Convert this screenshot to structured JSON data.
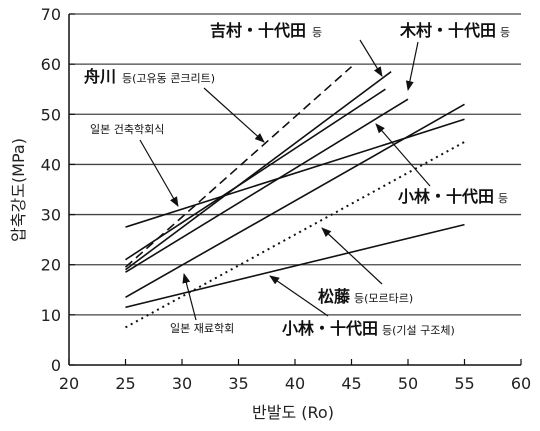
{
  "chart_data": {
    "type": "line",
    "title": "",
    "xlabel": "반발도 (Ro)",
    "ylabel": "압축강도(MPa)",
    "xlim": [
      20,
      60
    ],
    "ylim": [
      0,
      70
    ],
    "xticks": [
      20,
      25,
      30,
      35,
      40,
      45,
      50,
      55,
      60
    ],
    "yticks": [
      0,
      10,
      20,
      30,
      40,
      50,
      60,
      70
    ],
    "grid": "horizontal",
    "series": [
      {
        "style": "dashed",
        "x": [
          25,
          45
        ],
        "y": [
          19.5,
          59.5
        ]
      },
      {
        "style": "solid",
        "x": [
          25,
          48.5
        ],
        "y": [
          19,
          58.5
        ]
      },
      {
        "style": "solid",
        "x": [
          25,
          48
        ],
        "y": [
          21,
          55
        ]
      },
      {
        "style": "solid",
        "x": [
          25,
          50
        ],
        "y": [
          18.5,
          53
        ]
      },
      {
        "style": "solid",
        "x": [
          25,
          55
        ],
        "y": [
          13.5,
          52
        ]
      },
      {
        "style": "solid",
        "x": [
          25,
          55
        ],
        "y": [
          27.5,
          49
        ]
      },
      {
        "style": "solid",
        "x": [
          25,
          55
        ],
        "y": [
          11.5,
          28
        ]
      },
      {
        "style": "dotted",
        "x": [
          25,
          55
        ],
        "y": [
          7.5,
          44.5
        ]
      }
    ],
    "annotations": [
      {
        "id": "yoshimura",
        "cjk": "吉村・十代田",
        "suffix": "등"
      },
      {
        "id": "kimura",
        "cjk": "木村・十代田",
        "suffix": "등"
      },
      {
        "id": "funakawa",
        "cjk": "舟川",
        "suffix": "등(고유동 콘크리트)"
      },
      {
        "id": "aij",
        "cjk": "",
        "suffix": "일본 건축학회식"
      },
      {
        "id": "kobayashi1",
        "cjk": "小林・十代田",
        "suffix": "등"
      },
      {
        "id": "matsufuji",
        "cjk": "松藤",
        "suffix": "등(모르타르)"
      },
      {
        "id": "jsms",
        "cjk": "",
        "suffix": "일본 재료학회"
      },
      {
        "id": "kobayashi2",
        "cjk": "小林・十代田",
        "suffix": "등(기설 구조체)"
      }
    ]
  }
}
